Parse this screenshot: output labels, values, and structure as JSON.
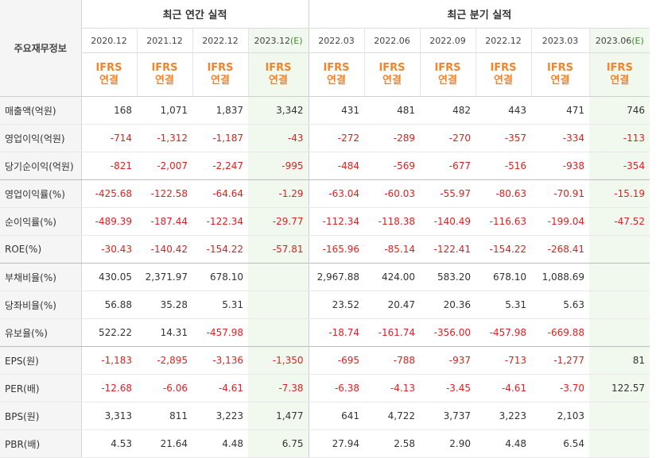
{
  "header": {
    "corner_label": "주요재무정보",
    "annual_title": "최근 연간 실적",
    "quarterly_title": "최근 분기 실적",
    "estimate_tag": "(E)",
    "account_line1": "IFRS",
    "account_line2": "연결"
  },
  "periods": [
    {
      "date": "2020.12",
      "estimate": false
    },
    {
      "date": "2021.12",
      "estimate": false
    },
    {
      "date": "2022.12",
      "estimate": false
    },
    {
      "date": "2023.12",
      "estimate": true
    },
    {
      "date": "2022.03",
      "estimate": false
    },
    {
      "date": "2022.06",
      "estimate": false
    },
    {
      "date": "2022.09",
      "estimate": false
    },
    {
      "date": "2022.12",
      "estimate": false
    },
    {
      "date": "2023.03",
      "estimate": false
    },
    {
      "date": "2023.06",
      "estimate": true
    }
  ],
  "rows": [
    {
      "label": "매출액(억원)",
      "values": [
        "168",
        "1,071",
        "1,837",
        "3,342",
        "431",
        "481",
        "482",
        "443",
        "471",
        "746"
      ]
    },
    {
      "label": "영업이익(억원)",
      "values": [
        "-714",
        "-1,312",
        "-1,187",
        "-43",
        "-272",
        "-289",
        "-270",
        "-357",
        "-334",
        "-113"
      ]
    },
    {
      "label": "당기순이익(억원)",
      "values": [
        "-821",
        "-2,007",
        "-2,247",
        "-995",
        "-484",
        "-569",
        "-677",
        "-516",
        "-938",
        "-354"
      ]
    },
    {
      "label": "영업이익률(%)",
      "values": [
        "-425.68",
        "-122.58",
        "-64.64",
        "-1.29",
        "-63.04",
        "-60.03",
        "-55.97",
        "-80.63",
        "-70.91",
        "-15.19"
      ]
    },
    {
      "label": "순이익률(%)",
      "values": [
        "-489.39",
        "-187.44",
        "-122.34",
        "-29.77",
        "-112.34",
        "-118.38",
        "-140.49",
        "-116.63",
        "-199.04",
        "-47.52"
      ]
    },
    {
      "label": "ROE(%)",
      "values": [
        "-30.43",
        "-140.42",
        "-154.22",
        "-57.81",
        "-165.96",
        "-85.14",
        "-122.41",
        "-154.22",
        "-268.41",
        ""
      ]
    },
    {
      "label": "부채비율(%)",
      "values": [
        "430.05",
        "2,371.97",
        "678.10",
        "",
        "2,967.88",
        "424.00",
        "583.20",
        "678.10",
        "1,088.69",
        ""
      ]
    },
    {
      "label": "당좌비율(%)",
      "values": [
        "56.88",
        "35.28",
        "5.31",
        "",
        "23.52",
        "20.47",
        "20.36",
        "5.31",
        "5.63",
        ""
      ]
    },
    {
      "label": "유보율(%)",
      "values": [
        "522.22",
        "14.31",
        "-457.98",
        "",
        "-18.74",
        "-161.74",
        "-356.00",
        "-457.98",
        "-669.88",
        ""
      ]
    },
    {
      "label": "EPS(원)",
      "values": [
        "-1,183",
        "-2,895",
        "-3,136",
        "-1,350",
        "-695",
        "-788",
        "-937",
        "-713",
        "-1,277",
        "81"
      ]
    },
    {
      "label": "PER(배)",
      "values": [
        "-12.68",
        "-6.06",
        "-4.61",
        "-7.38",
        "-6.38",
        "-4.13",
        "-3.45",
        "-4.61",
        "-3.70",
        "122.57"
      ]
    },
    {
      "label": "BPS(원)",
      "values": [
        "3,313",
        "811",
        "3,223",
        "1,477",
        "641",
        "4,722",
        "3,737",
        "3,223",
        "2,103",
        ""
      ]
    },
    {
      "label": "PBR(배)",
      "values": [
        "4.53",
        "21.64",
        "4.48",
        "6.75",
        "27.94",
        "2.58",
        "2.90",
        "4.48",
        "6.54",
        ""
      ]
    }
  ]
}
